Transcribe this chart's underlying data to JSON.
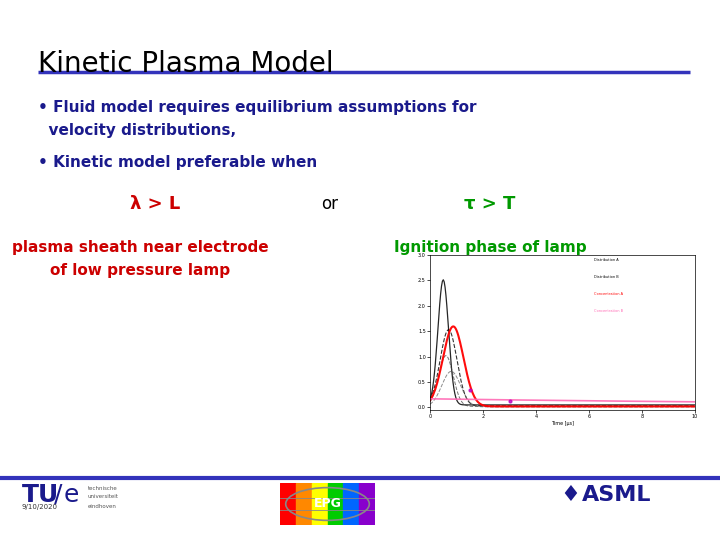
{
  "title": "Kinetic Plasma Model",
  "title_color": "#000000",
  "title_fontsize": 20,
  "line_color": "#3333BB",
  "bg_color": "#FFFFFF",
  "bullet1_line1": "• Fluid model requires equilibrium assumptions for",
  "bullet1_line2": "  velocity distributions,",
  "bullet2": "• Kinetic model preferable when",
  "bullet_color": "#1a1a8c",
  "bullet_fontsize": 11,
  "lambda_expr": "λ > L",
  "lambda_color": "#cc0000",
  "or_text": "or",
  "or_color": "#000000",
  "tau_expr": "τ > T",
  "tau_color": "#009900",
  "label1_line1": "plasma sheath near electrode",
  "label1_line2": "of low pressure lamp",
  "label1_color": "#cc0000",
  "label2": "Ignition phase of lamp",
  "label2_color": "#009900",
  "footer_line_color": "#3333BB",
  "footer_date": "9/10/2020",
  "footer_tu_color": "#1a1a8c",
  "footer_asml_color": "#1a1a8c",
  "epg_colors": [
    "#ff0000",
    "#ff8800",
    "#ffff00",
    "#00cc00",
    "#0066ff",
    "#8800cc"
  ]
}
